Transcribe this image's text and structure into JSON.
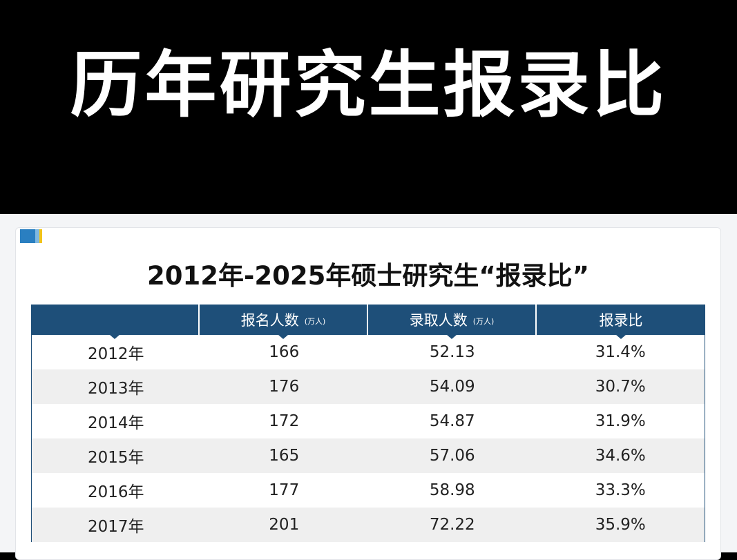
{
  "banner": {
    "title": "历年研究生报录比"
  },
  "table": {
    "title": "2012年-2025年硕士研究生“报录比”",
    "headers": [
      {
        "label": "",
        "unit": ""
      },
      {
        "label": "报名人数",
        "unit": "(万人)"
      },
      {
        "label": "录取人数",
        "unit": "(万人)"
      },
      {
        "label": "报录比",
        "unit": ""
      }
    ],
    "rows": [
      [
        "2012年",
        "166",
        "52.13",
        "31.4%"
      ],
      [
        "2013年",
        "176",
        "54.09",
        "30.7%"
      ],
      [
        "2014年",
        "172",
        "54.87",
        "31.9%"
      ],
      [
        "2015年",
        "165",
        "57.06",
        "34.6%"
      ],
      [
        "2016年",
        "177",
        "58.98",
        "33.3%"
      ],
      [
        "2017年",
        "201",
        "72.22",
        "35.9%"
      ]
    ]
  },
  "colors": {
    "header_bg": "#1e4f79",
    "alt_row_bg": "#efefef",
    "banner_bg": "#000000",
    "corner_blue": "#2a7fc1",
    "corner_yellow": "#f2c318"
  },
  "icons": {
    "corner": "corner-decoration-icon"
  }
}
